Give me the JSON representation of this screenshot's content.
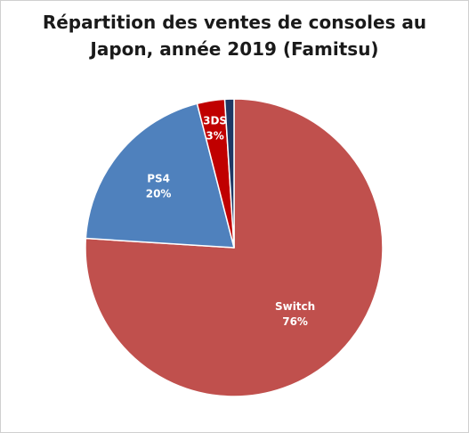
{
  "chart_data": {
    "type": "pie",
    "title_lines": [
      "Répartition des ventes de consoles au",
      "Japon, année 2019 (Famitsu)"
    ],
    "start_angle_deg": 0,
    "direction": "clockwise",
    "legend": "none",
    "slices": [
      {
        "name": "Switch",
        "value": 76,
        "label": "76%",
        "color": "#c0504d"
      },
      {
        "name": "PS4",
        "value": 20,
        "label": "20%",
        "color": "#4f81bd"
      },
      {
        "name": "3DS",
        "value": 3,
        "label": "3%",
        "color": "#c00000"
      },
      {
        "name": "",
        "value": 1,
        "label": "",
        "color": "#1f3864"
      }
    ]
  }
}
